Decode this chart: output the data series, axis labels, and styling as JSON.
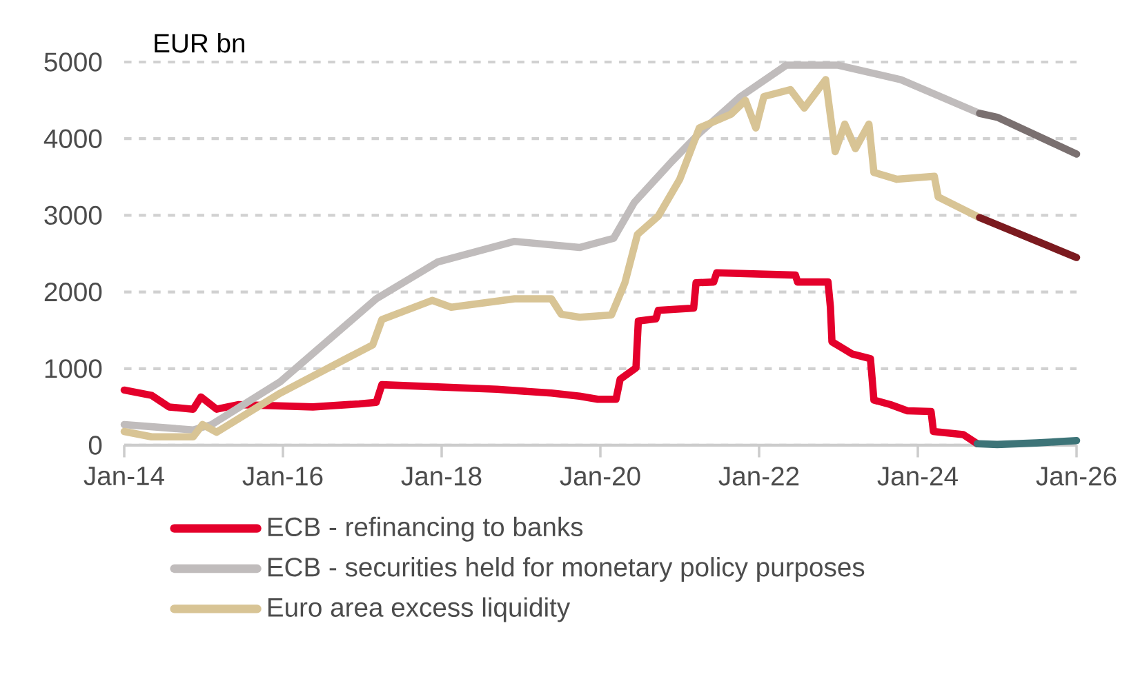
{
  "chart_data": {
    "type": "line",
    "ylabel": "EUR bn",
    "xlim": [
      "2014-01",
      "2026-01"
    ],
    "ylim": [
      0,
      5000
    ],
    "xticks": [
      {
        "value": "2014-01",
        "label": "Jan-14"
      },
      {
        "value": "2016-01",
        "label": "Jan-16"
      },
      {
        "value": "2018-01",
        "label": "Jan-18"
      },
      {
        "value": "2020-01",
        "label": "Jan-20"
      },
      {
        "value": "2022-01",
        "label": "Jan-22"
      },
      {
        "value": "2024-01",
        "label": "Jan-24"
      },
      {
        "value": "2026-01",
        "label": "Jan-26"
      }
    ],
    "yticks": [
      0,
      1000,
      2000,
      3000,
      4000,
      5000
    ],
    "grid": "y",
    "legend": "bottom",
    "marker": "none",
    "line_style": "solid",
    "series": [
      {
        "name": "ECB - refinancing to banks",
        "color": "#e4002b",
        "x": [
          "2014-01-01",
          "2014-05-07",
          "2014-07-26",
          "2014-11-14",
          "2014-12-20",
          "2015-03-02",
          "2015-06-09",
          "2016-05-18",
          "2016-12-17",
          "2017-03-06",
          "2017-04-01",
          "2018-09-13",
          "2019-05-21",
          "2019-09-27",
          "2019-12-20",
          "2020-03-13",
          "2020-04-01",
          "2020-06-13",
          "2020-06-24",
          "2020-09-13",
          "2020-09-24",
          "2021-03-06",
          "2021-03-17",
          "2021-06-06",
          "2021-06-20",
          "2022-06-17",
          "2022-06-27",
          "2022-11-14",
          "2022-11-25",
          "2022-12-02",
          "2023-03-06",
          "2023-05-28",
          "2023-06-13",
          "2023-08-28",
          "2023-11-14",
          "2024-03-02",
          "2024-03-13",
          "2024-07-28",
          "2024-10-01"
        ],
        "values": [
          720,
          650,
          500,
          470,
          630,
          470,
          530,
          500,
          540,
          560,
          790,
          730,
          680,
          640,
          600,
          600,
          860,
          1010,
          1620,
          1650,
          1760,
          1790,
          2120,
          2130,
          2250,
          2220,
          2130,
          2130,
          1800,
          1350,
          1190,
          1130,
          590,
          530,
          450,
          440,
          180,
          140,
          20
        ]
      },
      {
        "name": "ECB - securities held for monetary policy purposes",
        "color": "#c0bcbc",
        "x": [
          "2014-01-01",
          "2014-11-14",
          "2015-02-07",
          "2015-12-20",
          "2017-03-06",
          "2017-12-13",
          "2018-12-02",
          "2019-09-27",
          "2020-03-02",
          "2020-06-06",
          "2020-11-25",
          "2021-04-01",
          "2021-10-08",
          "2022-05-07",
          "2022-12-27",
          "2023-10-15",
          "2024-10-12"
        ],
        "values": [
          270,
          200,
          270,
          830,
          1910,
          2390,
          2660,
          2580,
          2700,
          3170,
          3700,
          4070,
          4550,
          4960,
          4960,
          4770,
          4330
        ]
      },
      {
        "name": "Euro area excess liquidity",
        "color": "#d8c495",
        "x": [
          "2014-01-01",
          "2014-05-07",
          "2014-11-14",
          "2014-12-27",
          "2015-03-02",
          "2015-12-20",
          "2017-02-18",
          "2017-04-01",
          "2017-11-18",
          "2018-02-14",
          "2018-12-02",
          "2019-05-21",
          "2019-07-05",
          "2019-09-27",
          "2020-02-21",
          "2020-04-23",
          "2020-06-20",
          "2020-09-24",
          "2021-01-01",
          "2021-04-01",
          "2021-08-25",
          "2021-10-30",
          "2021-12-17",
          "2022-01-23",
          "2022-05-25",
          "2022-07-28",
          "2022-11-03",
          "2022-12-17",
          "2023-01-30",
          "2023-03-20",
          "2023-05-21",
          "2023-06-13",
          "2023-09-27",
          "2024-03-17",
          "2024-04-04",
          "2024-10-12"
        ],
        "values": [
          180,
          110,
          110,
          270,
          170,
          680,
          1310,
          1640,
          1890,
          1800,
          1910,
          1910,
          1710,
          1670,
          1700,
          2120,
          2750,
          2990,
          3470,
          4140,
          4320,
          4500,
          4140,
          4550,
          4640,
          4400,
          4770,
          3830,
          4190,
          3870,
          4190,
          3560,
          3470,
          3510,
          3240,
          2970
        ]
      },
      {
        "color": "#3d7478",
        "x": [
          "2024-10-01",
          "2025-01-01",
          "2025-07-01",
          "2026-01-01"
        ],
        "values": [
          20,
          10,
          30,
          60
        ]
      },
      {
        "color": "#7a7070",
        "x": [
          "2024-10-12",
          "2025-01-01",
          "2026-01-01"
        ],
        "values": [
          4330,
          4280,
          3800
        ]
      },
      {
        "color": "#7b1a1f",
        "x": [
          "2024-10-12",
          "2026-01-01"
        ],
        "values": [
          2970,
          2450
        ]
      }
    ]
  }
}
